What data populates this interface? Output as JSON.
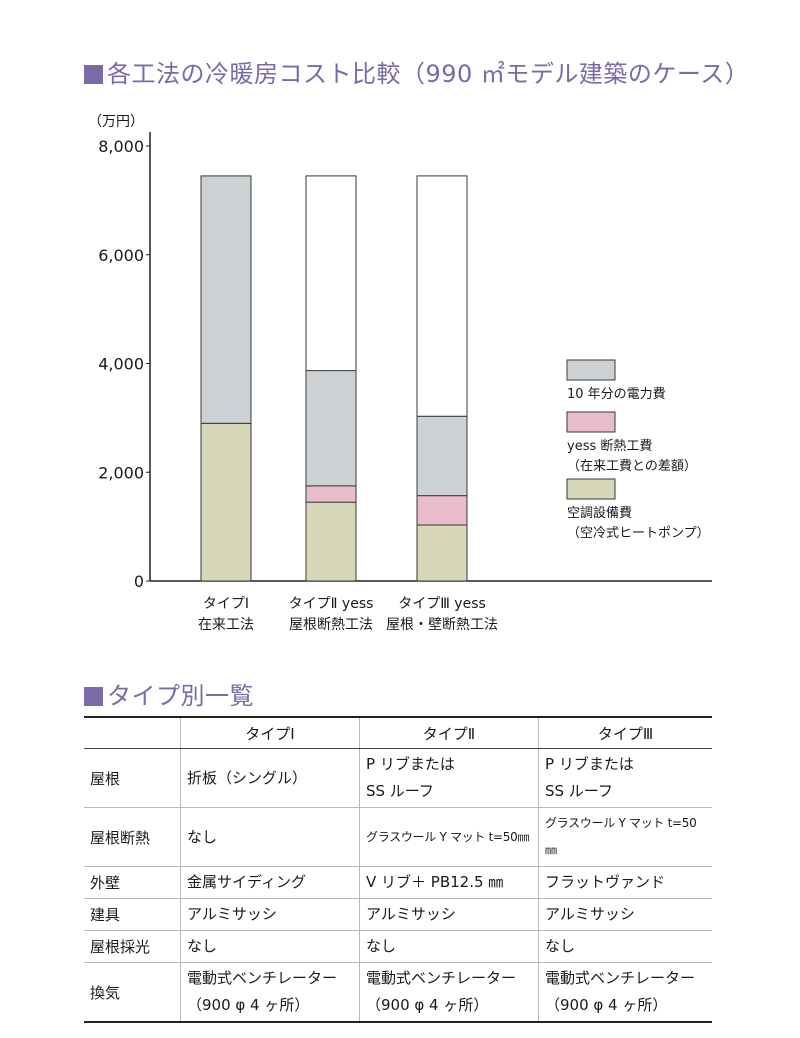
{
  "chart_title": "各工法の冷暖房コスト比較（990 ㎡モデル建築のケース）",
  "table_title": "タイプ別一覧",
  "chart_data": {
    "type": "bar",
    "stacked": true,
    "unit_label": "（万円）",
    "ylim": [
      0,
      8000
    ],
    "y_ticks": [
      "0",
      "2,000",
      "4,000",
      "6,000",
      "8,000"
    ],
    "y_tick_values": [
      0,
      2000,
      4000,
      6000,
      8000
    ],
    "categories": [
      {
        "line1": "タイプⅠ",
        "line2": "在来工法"
      },
      {
        "line1": "タイプⅡ yess",
        "line2": "屋根断熱工法"
      },
      {
        "line1": "タイプⅢ yess",
        "line2": "屋根・壁断熱工法"
      }
    ],
    "series": [
      {
        "name": "空調設備費",
        "name2": "（空冷式ヒートポンプ）",
        "color": "#d6d8b9",
        "values": [
          2900,
          1450,
          1030
        ]
      },
      {
        "name": "yess 断熱工費",
        "name2": "（在来工費との差額）",
        "color": "#e8bccb",
        "values": [
          0,
          300,
          540
        ]
      },
      {
        "name": "10 年分の電力費",
        "name2": "",
        "color": "#cdd1d4",
        "values": [
          4550,
          2120,
          1460
        ]
      },
      {
        "name": "",
        "name2": "",
        "color": "#ffffff",
        "values": [
          0,
          3580,
          4420
        ]
      }
    ],
    "legend_order": [
      2,
      1,
      0
    ],
    "grid": false
  },
  "table": {
    "headers": [
      "",
      "タイプⅠ",
      "タイプⅡ",
      "タイプⅢ"
    ],
    "rows": [
      {
        "label": "屋根",
        "cells": [
          [
            "折板（シングル）"
          ],
          [
            "P リブまたは",
            "SS ルーフ"
          ],
          [
            "P リブまたは",
            "SS ルーフ"
          ]
        ]
      },
      {
        "label": "屋根断熱",
        "cells": [
          [
            "なし"
          ],
          [
            "グラスウール Y マット t=50㎜"
          ],
          [
            "グラスウール Y マット t=50㎜"
          ]
        ]
      },
      {
        "label": "外壁",
        "cells": [
          [
            "金属サイディング"
          ],
          [
            "V リブ＋ PB12.5 ㎜"
          ],
          [
            "フラットヴァンド"
          ]
        ]
      },
      {
        "label": "建具",
        "cells": [
          [
            "アルミサッシ"
          ],
          [
            "アルミサッシ"
          ],
          [
            "アルミサッシ"
          ]
        ]
      },
      {
        "label": "屋根採光",
        "cells": [
          [
            "なし"
          ],
          [
            "なし"
          ],
          [
            "なし"
          ]
        ]
      },
      {
        "label": "換気",
        "cells": [
          [
            "電動式ベンチレーター",
            "（900 φ 4 ヶ所）"
          ],
          [
            "電動式ベンチレーター",
            "（900 φ 4 ヶ所）"
          ],
          [
            "電動式ベンチレーター",
            "（900 φ 4 ヶ所）"
          ]
        ]
      }
    ]
  }
}
